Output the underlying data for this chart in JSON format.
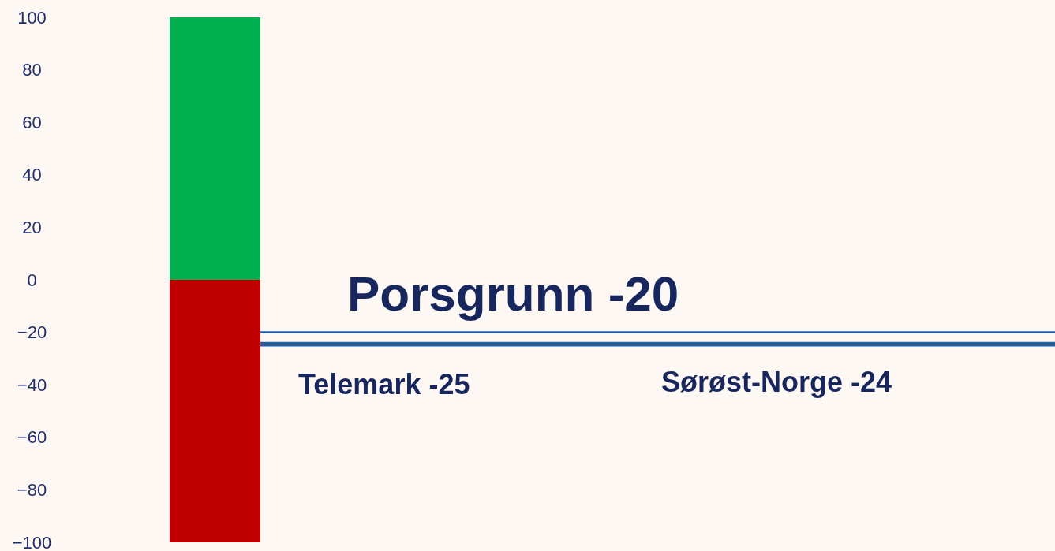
{
  "chart_data": {
    "type": "bar",
    "stacked": true,
    "categories": [
      null
    ],
    "series": [
      {
        "color": "#00b050",
        "values": [
          100
        ]
      },
      {
        "color": "#c00000",
        "values": [
          -100
        ]
      }
    ],
    "ylim": [
      -100,
      100
    ],
    "yticks": [
      -100,
      -80,
      -60,
      -40,
      -20,
      0,
      20,
      40,
      60,
      80,
      100
    ],
    "grid": false,
    "legend": false,
    "tick_labels": "y",
    "ref_lines": [
      {
        "axis": "y",
        "value": -20,
        "label": "Porsgrunn -20",
        "color": "#1f5ea8"
      },
      {
        "axis": "y",
        "value": -25,
        "label": "Telemark -25",
        "color": "#1f5ea8"
      },
      {
        "axis": "y",
        "value": -24,
        "label": "Sørøst-Norge -24",
        "color": "#1f5ea8"
      }
    ]
  }
}
